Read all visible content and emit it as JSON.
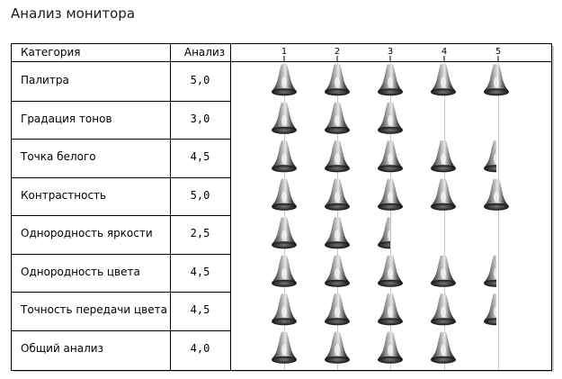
{
  "page_title": "Анализ монитора",
  "table": {
    "header": {
      "category": "Категория",
      "rating": "Анализ"
    }
  },
  "chart_data": {
    "type": "table",
    "scale_ticks": [
      "1",
      "2",
      "3",
      "4",
      "5"
    ],
    "xlim": [
      0.5,
      5.5
    ],
    "grid": true,
    "marker_icon": "bell-icon",
    "rows": [
      {
        "category": "Палитра",
        "value_label": "5,0",
        "value": 5.0
      },
      {
        "category": "Градация тонов",
        "value_label": "3,0",
        "value": 3.0
      },
      {
        "category": "Точка белого",
        "value_label": "4,5",
        "value": 4.5
      },
      {
        "category": "Контрастность",
        "value_label": "5,0",
        "value": 5.0
      },
      {
        "category": "Однородность яркости",
        "value_label": "2,5",
        "value": 2.5
      },
      {
        "category": "Однородность цвета",
        "value_label": "4,5",
        "value": 4.5
      },
      {
        "category": "Точность передачи цвета",
        "value_label": "4,5",
        "value": 4.5
      },
      {
        "category": "Общий анализ",
        "value_label": "4,0",
        "value": 4.0
      }
    ]
  }
}
